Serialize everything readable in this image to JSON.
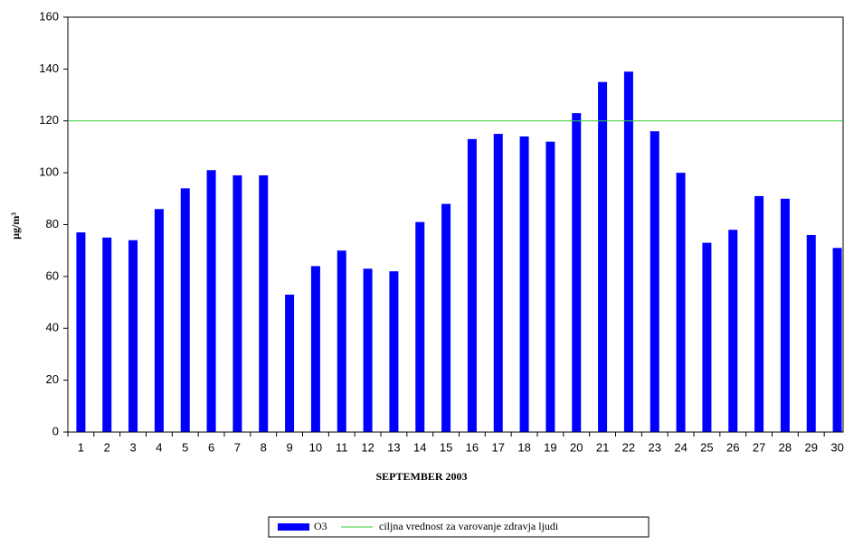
{
  "chart_data": {
    "type": "bar",
    "x_label": "SEPTEMBER 2003",
    "y_label": "µg/m³",
    "categories": [
      "1",
      "2",
      "3",
      "4",
      "5",
      "6",
      "7",
      "8",
      "9",
      "10",
      "11",
      "12",
      "13",
      "14",
      "15",
      "16",
      "17",
      "18",
      "19",
      "20",
      "21",
      "22",
      "23",
      "24",
      "25",
      "26",
      "27",
      "28",
      "29",
      "30"
    ],
    "series": [
      {
        "name": "O3",
        "color": "#0000ff",
        "values": [
          77,
          75,
          74,
          86,
          94,
          101,
          99,
          99,
          53,
          64,
          70,
          63,
          62,
          81,
          88,
          113,
          115,
          114,
          112,
          123,
          135,
          139,
          116,
          100,
          73,
          78,
          91,
          90,
          76,
          71
        ]
      }
    ],
    "reference_line": {
      "name": "ciljna vrednost za varovanje zdravja ljudi",
      "value": 120,
      "color": "#33cc33"
    },
    "ylim": [
      0,
      160
    ],
    "yticks": [
      0,
      20,
      40,
      60,
      80,
      100,
      120,
      140,
      160
    ],
    "legend": "bottom"
  }
}
